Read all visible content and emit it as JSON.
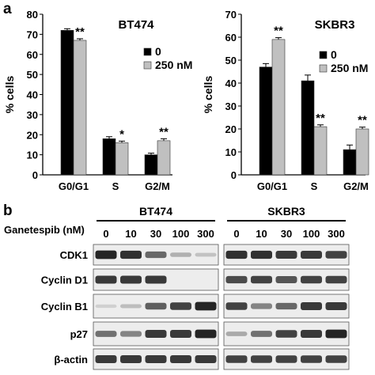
{
  "panel_a_label": "a",
  "panel_b_label": "b",
  "chart_data": [
    {
      "type": "bar",
      "title": "BT474",
      "ylabel": "% cells",
      "xlabel": "",
      "categories": [
        "G0/G1",
        "S",
        "G2/M"
      ],
      "ylim": [
        0,
        80
      ],
      "yticks": [
        0,
        10,
        20,
        30,
        40,
        50,
        60,
        70,
        80
      ],
      "series": [
        {
          "name": "0",
          "color": "#000000",
          "values": [
            72,
            18,
            10
          ],
          "errors": [
            0.8,
            1.0,
            0.8
          ]
        },
        {
          "name": "250 nM",
          "color": "#c0c0c0",
          "values": [
            67,
            16,
            17
          ],
          "errors": [
            0.8,
            0.8,
            1.0
          ]
        }
      ],
      "annotations": [
        "**",
        "*",
        "**"
      ],
      "legend_position": "right"
    },
    {
      "type": "bar",
      "title": "SKBR3",
      "ylabel": "% cells",
      "xlabel": "",
      "categories": [
        "G0/G1",
        "S",
        "G2/M"
      ],
      "ylim": [
        0,
        70
      ],
      "yticks": [
        0,
        10,
        20,
        30,
        40,
        50,
        60,
        70
      ],
      "series": [
        {
          "name": "0",
          "color": "#000000",
          "values": [
            47,
            41,
            11
          ],
          "errors": [
            1.5,
            2.5,
            2.0
          ]
        },
        {
          "name": "250 nM",
          "color": "#c0c0c0",
          "values": [
            59,
            21,
            20
          ],
          "errors": [
            0.8,
            0.8,
            0.8
          ]
        }
      ],
      "annotations": [
        "**",
        "**",
        "**"
      ],
      "legend_position": "right"
    }
  ],
  "blot": {
    "treatment_label": "Ganetespib (nM)",
    "cell_lines": [
      "BT474",
      "SKBR3"
    ],
    "concentrations": [
      "0",
      "10",
      "30",
      "100",
      "300"
    ],
    "rows": [
      {
        "label": "CDK1",
        "intensity": [
          [
            0.95,
            0.9,
            0.6,
            0.22,
            0.12
          ],
          [
            0.9,
            0.9,
            0.85,
            0.85,
            0.8
          ]
        ]
      },
      {
        "label": "Cyclin D1",
        "intensity": [
          [
            0.85,
            0.85,
            0.85,
            0.0,
            0.0
          ],
          [
            0.75,
            0.8,
            0.7,
            0.8,
            0.8
          ]
        ]
      },
      {
        "label": "Cyclin B1",
        "intensity": [
          [
            0.05,
            0.15,
            0.65,
            0.8,
            0.95
          ],
          [
            0.8,
            0.45,
            0.6,
            0.85,
            0.85
          ]
        ]
      },
      {
        "label": "p27",
        "intensity": [
          [
            0.55,
            0.45,
            0.85,
            0.85,
            0.95
          ],
          [
            0.25,
            0.55,
            0.8,
            0.85,
            0.95
          ]
        ]
      },
      {
        "label": "β-actin",
        "intensity": [
          [
            0.85,
            0.85,
            0.85,
            0.85,
            0.85
          ],
          [
            0.8,
            0.8,
            0.8,
            0.8,
            0.8
          ]
        ]
      }
    ]
  }
}
